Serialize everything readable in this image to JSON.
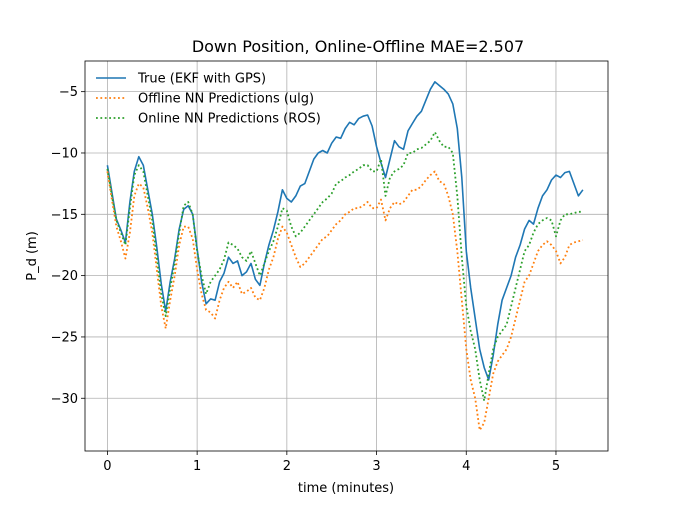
{
  "chart_data": {
    "type": "line",
    "title": "Down Position, Online-Offline  MAE=2.507",
    "xlabel": "time (minutes)",
    "ylabel": "P_d (m)",
    "xlim": [
      -0.25,
      5.58
    ],
    "ylim": [
      -34.3,
      -2.5
    ],
    "xticks": [
      0,
      1,
      2,
      3,
      4,
      5
    ],
    "yticks": [
      -30,
      -25,
      -20,
      -15,
      -10,
      -5
    ],
    "xtick_labels": [
      "0",
      "1",
      "2",
      "3",
      "4",
      "5"
    ],
    "ytick_labels": [
      "−30",
      "−25",
      "−20",
      "−15",
      "−10",
      "−5"
    ],
    "grid": true,
    "legend_position": "top-left",
    "series": [
      {
        "name": "True (EKF with GPS)",
        "color": "#1f77b4",
        "style": "solid",
        "x": [
          0.0,
          0.05,
          0.1,
          0.15,
          0.2,
          0.25,
          0.3,
          0.35,
          0.4,
          0.45,
          0.5,
          0.55,
          0.6,
          0.65,
          0.7,
          0.75,
          0.8,
          0.85,
          0.9,
          0.95,
          1.0,
          1.05,
          1.1,
          1.15,
          1.2,
          1.25,
          1.3,
          1.35,
          1.4,
          1.45,
          1.5,
          1.55,
          1.6,
          1.65,
          1.7,
          1.75,
          1.8,
          1.85,
          1.9,
          1.95,
          2.0,
          2.05,
          2.1,
          2.15,
          2.2,
          2.25,
          2.3,
          2.35,
          2.4,
          2.45,
          2.5,
          2.55,
          2.6,
          2.65,
          2.7,
          2.75,
          2.8,
          2.85,
          2.9,
          2.95,
          3.0,
          3.05,
          3.1,
          3.15,
          3.2,
          3.25,
          3.3,
          3.35,
          3.4,
          3.45,
          3.5,
          3.55,
          3.6,
          3.65,
          3.7,
          3.75,
          3.8,
          3.85,
          3.9,
          3.95,
          4.0,
          4.05,
          4.1,
          4.15,
          4.2,
          4.25,
          4.3,
          4.35,
          4.4,
          4.45,
          4.5,
          4.55,
          4.6,
          4.65,
          4.7,
          4.75,
          4.8,
          4.85,
          4.9,
          4.95,
          5.0,
          5.05,
          5.1,
          5.15,
          5.2,
          5.25,
          5.3
        ],
        "y": [
          -11.0,
          -13.2,
          -15.4,
          -16.3,
          -17.3,
          -14.0,
          -11.5,
          -10.3,
          -11.0,
          -13.0,
          -15.0,
          -17.7,
          -20.7,
          -22.9,
          -20.5,
          -18.6,
          -16.2,
          -14.6,
          -14.3,
          -15.0,
          -17.8,
          -20.5,
          -22.3,
          -21.9,
          -22.0,
          -20.5,
          -19.8,
          -18.5,
          -19.0,
          -18.8,
          -20.0,
          -19.7,
          -19.0,
          -20.3,
          -20.8,
          -19.0,
          -17.5,
          -16.3,
          -14.8,
          -13.0,
          -13.7,
          -14.0,
          -13.5,
          -12.7,
          -12.5,
          -11.5,
          -10.5,
          -10.0,
          -9.8,
          -10.0,
          -9.2,
          -8.7,
          -8.8,
          -8.0,
          -7.5,
          -7.7,
          -7.2,
          -7.0,
          -6.9,
          -7.8,
          -9.5,
          -10.8,
          -12.0,
          -10.5,
          -9.0,
          -9.5,
          -9.7,
          -8.2,
          -7.6,
          -7.0,
          -6.6,
          -5.7,
          -4.8,
          -4.2,
          -4.5,
          -4.8,
          -5.2,
          -6.0,
          -8.0,
          -12.0,
          -18.0,
          -21.0,
          -23.5,
          -26.0,
          -27.5,
          -28.5,
          -26.5,
          -24.0,
          -22.0,
          -21.0,
          -20.0,
          -18.5,
          -17.5,
          -16.2,
          -15.5,
          -15.8,
          -14.5,
          -13.5,
          -13.0,
          -12.2,
          -11.8,
          -12.0,
          -11.6,
          -11.5,
          -12.5,
          -13.5,
          -13.0
        ]
      },
      {
        "name": "Offline NN Predictions (ulg)",
        "color": "#ff7f0e",
        "style": "dotted",
        "x": [
          0.0,
          0.05,
          0.1,
          0.15,
          0.2,
          0.25,
          0.3,
          0.35,
          0.4,
          0.45,
          0.5,
          0.55,
          0.6,
          0.65,
          0.7,
          0.75,
          0.8,
          0.85,
          0.9,
          0.95,
          1.0,
          1.05,
          1.1,
          1.15,
          1.2,
          1.25,
          1.3,
          1.35,
          1.4,
          1.45,
          1.5,
          1.55,
          1.6,
          1.65,
          1.7,
          1.75,
          1.8,
          1.85,
          1.9,
          1.95,
          2.0,
          2.05,
          2.1,
          2.15,
          2.2,
          2.25,
          2.3,
          2.35,
          2.4,
          2.45,
          2.5,
          2.55,
          2.6,
          2.65,
          2.7,
          2.75,
          2.8,
          2.85,
          2.9,
          2.95,
          3.0,
          3.05,
          3.1,
          3.15,
          3.2,
          3.25,
          3.3,
          3.35,
          3.4,
          3.45,
          3.5,
          3.55,
          3.6,
          3.65,
          3.7,
          3.75,
          3.8,
          3.85,
          3.9,
          3.95,
          4.0,
          4.05,
          4.1,
          4.15,
          4.2,
          4.25,
          4.3,
          4.35,
          4.4,
          4.45,
          4.5,
          4.55,
          4.6,
          4.65,
          4.7,
          4.75,
          4.8,
          4.85,
          4.9,
          4.95,
          5.0,
          5.05,
          5.1,
          5.15,
          5.2,
          5.25,
          5.3
        ],
        "y": [
          -11.5,
          -13.8,
          -16.0,
          -17.2,
          -18.6,
          -16.5,
          -13.5,
          -12.5,
          -12.8,
          -14.5,
          -16.5,
          -19.5,
          -22.5,
          -24.3,
          -22.0,
          -20.0,
          -17.5,
          -16.0,
          -16.0,
          -17.0,
          -19.5,
          -21.5,
          -22.8,
          -23.0,
          -23.5,
          -22.0,
          -21.0,
          -20.5,
          -21.0,
          -20.5,
          -21.5,
          -21.3,
          -21.0,
          -21.8,
          -22.0,
          -21.0,
          -19.5,
          -18.5,
          -17.0,
          -16.0,
          -16.5,
          -17.5,
          -18.5,
          -19.3,
          -19.0,
          -18.5,
          -18.0,
          -17.5,
          -17.0,
          -16.8,
          -16.3,
          -15.8,
          -15.5,
          -15.0,
          -14.8,
          -14.5,
          -14.5,
          -14.3,
          -14.0,
          -14.5,
          -14.5,
          -13.8,
          -15.5,
          -14.5,
          -14.0,
          -14.2,
          -14.0,
          -13.5,
          -13.0,
          -13.0,
          -12.7,
          -12.2,
          -11.8,
          -11.5,
          -12.3,
          -12.5,
          -13.5,
          -15.0,
          -18.0,
          -22.0,
          -26.0,
          -28.5,
          -30.0,
          -32.6,
          -32.0,
          -30.0,
          -28.0,
          -27.0,
          -26.5,
          -26.0,
          -25.0,
          -23.5,
          -22.0,
          -20.5,
          -20.0,
          -19.0,
          -18.0,
          -17.5,
          -17.2,
          -17.5,
          -18.0,
          -19.0,
          -18.5,
          -17.5,
          -17.3,
          -17.2,
          -17.1
        ]
      },
      {
        "name": "Online NN Predictions (ROS)",
        "color": "#2ca02c",
        "style": "dotted",
        "x": [
          0.0,
          0.05,
          0.1,
          0.15,
          0.2,
          0.25,
          0.3,
          0.35,
          0.4,
          0.45,
          0.5,
          0.55,
          0.6,
          0.65,
          0.7,
          0.75,
          0.8,
          0.85,
          0.9,
          0.95,
          1.0,
          1.05,
          1.1,
          1.15,
          1.2,
          1.25,
          1.3,
          1.35,
          1.4,
          1.45,
          1.5,
          1.55,
          1.6,
          1.65,
          1.7,
          1.75,
          1.8,
          1.85,
          1.9,
          1.95,
          2.0,
          2.05,
          2.1,
          2.15,
          2.2,
          2.25,
          2.3,
          2.35,
          2.4,
          2.45,
          2.5,
          2.55,
          2.6,
          2.65,
          2.7,
          2.75,
          2.8,
          2.85,
          2.9,
          2.95,
          3.0,
          3.05,
          3.1,
          3.15,
          3.2,
          3.25,
          3.3,
          3.35,
          3.4,
          3.45,
          3.5,
          3.55,
          3.6,
          3.65,
          3.7,
          3.75,
          3.8,
          3.85,
          3.9,
          3.95,
          4.0,
          4.05,
          4.1,
          4.15,
          4.2,
          4.25,
          4.3,
          4.35,
          4.4,
          4.45,
          4.5,
          4.55,
          4.6,
          4.65,
          4.7,
          4.75,
          4.8,
          4.85,
          4.9,
          4.95,
          5.0,
          5.05,
          5.1,
          5.15,
          5.2,
          5.25,
          5.3
        ],
        "y": [
          -11.3,
          -13.5,
          -15.5,
          -16.5,
          -17.5,
          -14.5,
          -11.8,
          -11.0,
          -11.5,
          -13.5,
          -15.5,
          -18.5,
          -21.5,
          -23.3,
          -21.0,
          -19.0,
          -16.5,
          -14.3,
          -14.0,
          -15.0,
          -18.0,
          -20.0,
          -21.5,
          -20.5,
          -20.0,
          -19.5,
          -18.7,
          -17.3,
          -17.5,
          -17.8,
          -18.5,
          -18.8,
          -18.0,
          -19.0,
          -20.0,
          -19.0,
          -18.0,
          -17.2,
          -16.0,
          -14.5,
          -14.7,
          -16.0,
          -16.8,
          -16.5,
          -16.0,
          -15.5,
          -15.0,
          -14.5,
          -14.0,
          -13.7,
          -13.3,
          -12.5,
          -12.3,
          -12.0,
          -11.8,
          -11.5,
          -11.3,
          -11.0,
          -11.0,
          -11.5,
          -11.5,
          -10.5,
          -13.5,
          -12.0,
          -11.5,
          -11.3,
          -11.0,
          -10.0,
          -10.0,
          -9.7,
          -9.6,
          -9.3,
          -9.0,
          -8.3,
          -9.0,
          -9.5,
          -9.5,
          -10.0,
          -13.5,
          -18.5,
          -22.5,
          -24.5,
          -26.0,
          -28.5,
          -30.2,
          -28.0,
          -26.0,
          -25.0,
          -24.5,
          -24.0,
          -22.5,
          -21.0,
          -19.5,
          -18.0,
          -17.5,
          -16.5,
          -15.8,
          -15.5,
          -15.3,
          -15.5,
          -16.8,
          -15.5,
          -15.0,
          -15.0,
          -14.9,
          -14.8,
          -14.8
        ]
      }
    ]
  }
}
